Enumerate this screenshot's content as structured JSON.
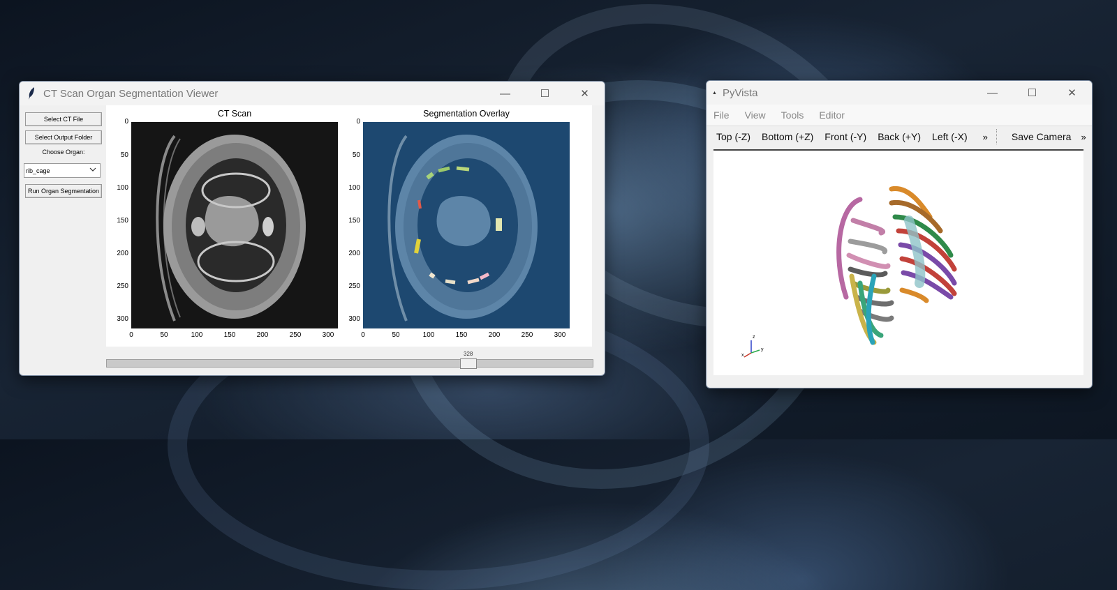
{
  "ct_window": {
    "title": "CT Scan Organ Segmentation Viewer",
    "buttons": {
      "select_ct": "Select CT File",
      "select_output": "Select Output Folder",
      "run": "Run Organ Segmentation"
    },
    "organ_label": "Choose Organ:",
    "organ_select_value": "rib_cage",
    "plots": {
      "left_title": "CT Scan",
      "right_title": "Segmentation Overlay",
      "ticks": [
        "0",
        "50",
        "100",
        "150",
        "200",
        "250",
        "300"
      ]
    },
    "slider": {
      "value_label": "328",
      "fraction": 0.75
    }
  },
  "pyvista_window": {
    "title": "PyVista",
    "menu": [
      "File",
      "View",
      "Tools",
      "Editor"
    ],
    "toolbar": [
      "Top (-Z)",
      "Bottom (+Z)",
      "Front (-Y)",
      "Back (+Y)",
      "Left (-X)"
    ],
    "save_camera": "Save Camera",
    "axes": {
      "x": "x",
      "y": "y",
      "z": "z"
    }
  },
  "window_controls": {
    "minimize": "—",
    "maximize": "☐",
    "close": "✕"
  }
}
